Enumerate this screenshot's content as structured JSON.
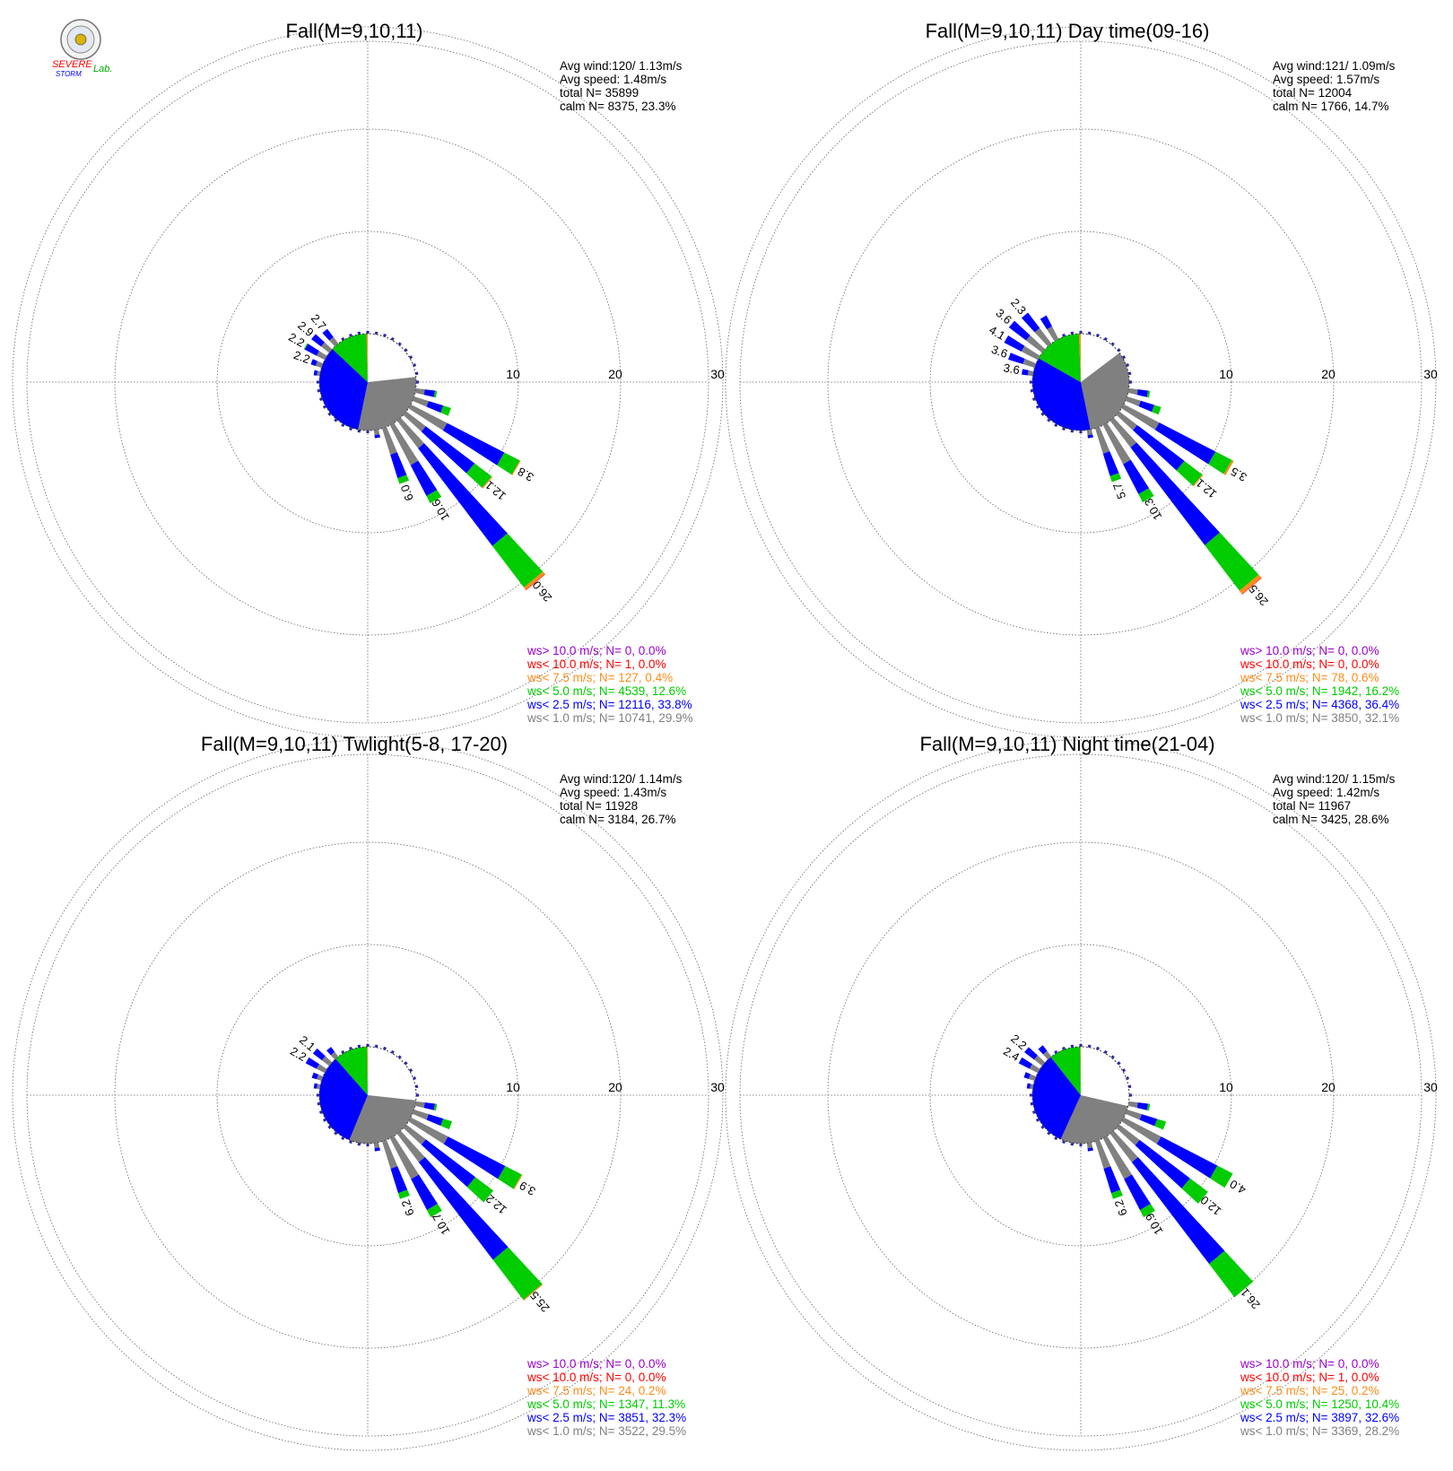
{
  "logo": {
    "line1": "SEVERE",
    "line2": "STORM",
    "line3": "Lab.",
    "colors": {
      "severe": "#ff0000",
      "storm": "#0000ff",
      "lab": "#00aa00"
    }
  },
  "colors": {
    "calm": "#ffffff",
    "lt1": "#808080",
    "lt2_5": "#0000ff",
    "lt5": "#00cc00",
    "lt7_5": "#ff8c1a",
    "lt10": "#ff0000",
    "gt10": "#9900cc",
    "grid": "#666666"
  },
  "chart_data": [
    {
      "type": "wind-rose",
      "title": "Fall(M=9,10,11)",
      "stats": [
        "Avg wind:120/ 1.13m/s",
        "Avg speed: 1.48m/s",
        "total N=      35899",
        "calm N=   8375,  23.3%"
      ],
      "rings": [
        10,
        20,
        30
      ],
      "ring_labels": [
        "10",
        "20",
        "30"
      ],
      "pie": [
        [
          "calm",
          23.3
        ],
        [
          "lt1",
          29.9
        ],
        [
          "lt2_5",
          33.8
        ],
        [
          "lt5",
          12.6
        ],
        [
          "lt7_5",
          0.4
        ]
      ],
      "bars": [
        {
          "dir": 100,
          "values": [
            0.9,
            1.0,
            0.2,
            0,
            0
          ]
        },
        {
          "dir": 110,
          "values": [
            1.5,
            1.5,
            0.8,
            0,
            0
          ]
        },
        {
          "dir": 120,
          "values": [
            4.0,
            6.3,
            1.7,
            0.1,
            0
          ]
        },
        {
          "dir": 130,
          "values": [
            2.4,
            6.0,
            2.1,
            0.1,
            0
          ]
        },
        {
          "dir": 140,
          "values": [
            3.4,
            12.0,
            5.1,
            0.3,
            0.05
          ]
        },
        {
          "dir": 150,
          "values": [
            4.4,
            3.4,
            0.8,
            0,
            0
          ]
        },
        {
          "dir": 160,
          "values": [
            2.7,
            2.4,
            0.6,
            0,
            0
          ]
        },
        {
          "dir": 170,
          "values": [
            0.5,
            0.3,
            0,
            0,
            0
          ]
        },
        {
          "dir": 280,
          "values": [
            0.3,
            0.3,
            0,
            0,
            0
          ]
        },
        {
          "dir": 290,
          "values": [
            0.6,
            0.5,
            0,
            0,
            0
          ]
        },
        {
          "dir": 300,
          "values": [
            0.9,
            1.3,
            0.1,
            0,
            0
          ]
        },
        {
          "dir": 310,
          "values": [
            1.0,
            1.2,
            0,
            0,
            0
          ]
        },
        {
          "dir": 320,
          "values": [
            0.8,
            1.0,
            0,
            0,
            0
          ]
        }
      ],
      "bar_labels": [
        {
          "dir": 120,
          "text": "3.8"
        },
        {
          "dir": 130,
          "text": "12.1"
        },
        {
          "dir": 140,
          "text": "26.0"
        },
        {
          "dir": 150,
          "text": "10.6"
        },
        {
          "dir": 160,
          "text": "6.0"
        },
        {
          "dir": 290,
          "text": "2.2"
        },
        {
          "dir": 300,
          "text": "2.2"
        },
        {
          "dir": 310,
          "text": "2.9"
        },
        {
          "dir": 320,
          "text": "2.7"
        }
      ],
      "legend": [
        {
          "key": "gt10",
          "text": "ws> 10.0 m/s; N=      0,  0.0%"
        },
        {
          "key": "lt10",
          "text": "ws< 10.0 m/s; N=      1,  0.0%"
        },
        {
          "key": "lt7_5",
          "text": "ws<  7.5 m/s; N=    127,  0.4%"
        },
        {
          "key": "lt5",
          "text": "ws<  5.0 m/s; N=  4539, 12.6%"
        },
        {
          "key": "lt2_5",
          "text": "ws<  2.5 m/s; N= 12116, 33.8%"
        },
        {
          "key": "lt1",
          "text": "ws<  1.0 m/s; N= 10741, 29.9%"
        }
      ]
    },
    {
      "type": "wind-rose",
      "title": "Fall(M=9,10,11) Day time(09-16)",
      "stats": [
        "Avg wind:121/ 1.09m/s",
        "Avg speed: 1.57m/s",
        "total N=      12004",
        "calm N=   1766,  14.7%"
      ],
      "rings": [
        10,
        20,
        30
      ],
      "ring_labels": [
        "10",
        "20",
        "30"
      ],
      "pie": [
        [
          "calm",
          14.7
        ],
        [
          "lt1",
          32.1
        ],
        [
          "lt2_5",
          36.4
        ],
        [
          "lt5",
          16.2
        ],
        [
          "lt7_5",
          0.6
        ]
      ],
      "bars": [
        {
          "dir": 100,
          "values": [
            0.9,
            1.0,
            0.2,
            0,
            0
          ]
        },
        {
          "dir": 110,
          "values": [
            1.4,
            1.4,
            0.7,
            0,
            0
          ]
        },
        {
          "dir": 120,
          "values": [
            3.9,
            6.2,
            1.8,
            0.2,
            0
          ]
        },
        {
          "dir": 130,
          "values": [
            2.2,
            5.8,
            2.2,
            0.1,
            0
          ]
        },
        {
          "dir": 140,
          "values": [
            3.3,
            12.0,
            5.6,
            0.4,
            0.05
          ]
        },
        {
          "dir": 150,
          "values": [
            4.3,
            3.3,
            0.9,
            0,
            0
          ]
        },
        {
          "dir": 160,
          "values": [
            2.6,
            2.3,
            0.6,
            0,
            0
          ]
        },
        {
          "dir": 170,
          "values": [
            0.5,
            0.3,
            0,
            0,
            0
          ]
        },
        {
          "dir": 280,
          "values": [
            0.5,
            0.6,
            0,
            0,
            0
          ]
        },
        {
          "dir": 290,
          "values": [
            1.2,
            1.5,
            0,
            0,
            0
          ]
        },
        {
          "dir": 300,
          "values": [
            1.8,
            1.9,
            0,
            0,
            0
          ]
        },
        {
          "dir": 310,
          "values": [
            2.0,
            2.1,
            0,
            0,
            0
          ]
        },
        {
          "dir": 320,
          "values": [
            1.9,
            1.9,
            0,
            0,
            0
          ]
        },
        {
          "dir": 330,
          "values": [
            1.4,
            1.2,
            0,
            0,
            0
          ]
        }
      ],
      "bar_labels": [
        {
          "dir": 120,
          "text": "3.5"
        },
        {
          "dir": 130,
          "text": "12.1"
        },
        {
          "dir": 140,
          "text": "26.5"
        },
        {
          "dir": 150,
          "text": "10.3"
        },
        {
          "dir": 160,
          "text": "5.7"
        },
        {
          "dir": 280,
          "text": "3.6"
        },
        {
          "dir": 290,
          "text": "3.6"
        },
        {
          "dir": 300,
          "text": "4.1"
        },
        {
          "dir": 310,
          "text": "3.6"
        },
        {
          "dir": 320,
          "text": "2.3"
        }
      ],
      "legend": [
        {
          "key": "gt10",
          "text": "ws> 10.0 m/s; N=      0,  0.0%"
        },
        {
          "key": "lt10",
          "text": "ws< 10.0 m/s; N=      0,  0.0%"
        },
        {
          "key": "lt7_5",
          "text": "ws<  7.5 m/s; N=     78,  0.6%"
        },
        {
          "key": "lt5",
          "text": "ws<  5.0 m/s; N=  1942, 16.2%"
        },
        {
          "key": "lt2_5",
          "text": "ws<  2.5 m/s; N=  4368, 36.4%"
        },
        {
          "key": "lt1",
          "text": "ws<  1.0 m/s; N=  3850, 32.1%"
        }
      ]
    },
    {
      "type": "wind-rose",
      "title": "Fall(M=9,10,11) Twlight(5-8, 17-20)",
      "stats": [
        "Avg wind:120/ 1.14m/s",
        "Avg speed: 1.43m/s",
        "total N=      11928",
        "calm N=   3184,  26.7%"
      ],
      "rings": [
        10,
        20,
        30
      ],
      "ring_labels": [
        "10",
        "20",
        "30"
      ],
      "pie": [
        [
          "calm",
          26.7
        ],
        [
          "lt1",
          29.5
        ],
        [
          "lt2_5",
          32.3
        ],
        [
          "lt5",
          11.3
        ],
        [
          "lt7_5",
          0.2
        ]
      ],
      "bars": [
        {
          "dir": 100,
          "values": [
            0.9,
            1.0,
            0.2,
            0,
            0
          ]
        },
        {
          "dir": 110,
          "values": [
            1.5,
            1.5,
            0.9,
            0,
            0
          ]
        },
        {
          "dir": 120,
          "values": [
            4.1,
            6.3,
            1.8,
            0.1,
            0
          ]
        },
        {
          "dir": 130,
          "values": [
            2.4,
            6.1,
            2.2,
            0,
            0
          ]
        },
        {
          "dir": 140,
          "values": [
            3.5,
            12.0,
            4.9,
            0.1,
            0
          ]
        },
        {
          "dir": 150,
          "values": [
            4.5,
            3.4,
            0.8,
            0,
            0
          ]
        },
        {
          "dir": 160,
          "values": [
            2.8,
            2.5,
            0.6,
            0,
            0
          ]
        },
        {
          "dir": 170,
          "values": [
            0.5,
            0.3,
            0,
            0,
            0
          ]
        },
        {
          "dir": 280,
          "values": [
            0.3,
            0.3,
            0,
            0,
            0
          ]
        },
        {
          "dir": 290,
          "values": [
            0.5,
            0.5,
            0,
            0,
            0
          ]
        },
        {
          "dir": 300,
          "values": [
            0.9,
            1.2,
            0,
            0,
            0
          ]
        },
        {
          "dir": 310,
          "values": [
            0.9,
            1.1,
            0,
            0,
            0
          ]
        },
        {
          "dir": 320,
          "values": [
            0.6,
            0.6,
            0,
            0,
            0
          ]
        }
      ],
      "bar_labels": [
        {
          "dir": 120,
          "text": "3.9"
        },
        {
          "dir": 130,
          "text": "12.2"
        },
        {
          "dir": 140,
          "text": "25.5"
        },
        {
          "dir": 150,
          "text": "10.7"
        },
        {
          "dir": 160,
          "text": "6.2"
        },
        {
          "dir": 300,
          "text": "2.2"
        },
        {
          "dir": 310,
          "text": "2.1"
        }
      ],
      "legend": [
        {
          "key": "gt10",
          "text": "ws> 10.0 m/s; N=      0,  0.0%"
        },
        {
          "key": "lt10",
          "text": "ws< 10.0 m/s; N=      0,  0.0%"
        },
        {
          "key": "lt7_5",
          "text": "ws<  7.5 m/s; N=     24,  0.2%"
        },
        {
          "key": "lt5",
          "text": "ws<  5.0 m/s; N=  1347, 11.3%"
        },
        {
          "key": "lt2_5",
          "text": "ws<  2.5 m/s; N=  3851, 32.3%"
        },
        {
          "key": "lt1",
          "text": "ws<  1.0 m/s; N=  3522, 29.5%"
        }
      ]
    },
    {
      "type": "wind-rose",
      "title": "Fall(M=9,10,11) Night time(21-04)",
      "stats": [
        "Avg wind:120/ 1.15m/s",
        "Avg speed: 1.42m/s",
        "total N=      11967",
        "calm N=   3425,  28.6%"
      ],
      "rings": [
        10,
        20,
        30
      ],
      "ring_labels": [
        "10",
        "20",
        "30"
      ],
      "pie": [
        [
          "calm",
          28.6
        ],
        [
          "lt1",
          28.2
        ],
        [
          "lt2_5",
          32.6
        ],
        [
          "lt5",
          10.4
        ],
        [
          "lt7_5",
          0.2
        ]
      ],
      "bars": [
        {
          "dir": 100,
          "values": [
            0.9,
            1.0,
            0.2,
            0,
            0
          ]
        },
        {
          "dir": 110,
          "values": [
            1.5,
            1.6,
            0.9,
            0,
            0
          ]
        },
        {
          "dir": 120,
          "values": [
            4.1,
            6.2,
            1.7,
            0,
            0
          ]
        },
        {
          "dir": 130,
          "values": [
            2.5,
            6.2,
            2.2,
            0,
            0
          ]
        },
        {
          "dir": 140,
          "values": [
            3.5,
            12.5,
            4.1,
            0,
            0
          ]
        },
        {
          "dir": 150,
          "values": [
            4.5,
            3.4,
            0.8,
            0,
            0
          ]
        },
        {
          "dir": 160,
          "values": [
            2.8,
            2.5,
            0.6,
            0,
            0
          ]
        },
        {
          "dir": 170,
          "values": [
            0.5,
            0.3,
            0,
            0,
            0
          ]
        },
        {
          "dir": 280,
          "values": [
            0.3,
            0.3,
            0,
            0,
            0
          ]
        },
        {
          "dir": 290,
          "values": [
            0.6,
            0.5,
            0,
            0,
            0
          ]
        },
        {
          "dir": 300,
          "values": [
            0.9,
            1.2,
            0,
            0,
            0
          ]
        },
        {
          "dir": 310,
          "values": [
            1.0,
            1.2,
            0,
            0,
            0
          ]
        },
        {
          "dir": 320,
          "values": [
            0.7,
            0.7,
            0,
            0,
            0
          ]
        }
      ],
      "bar_labels": [
        {
          "dir": 120,
          "text": "4.0"
        },
        {
          "dir": 130,
          "text": "12.0"
        },
        {
          "dir": 140,
          "text": "26.1"
        },
        {
          "dir": 150,
          "text": "10.9"
        },
        {
          "dir": 160,
          "text": "6.2"
        },
        {
          "dir": 300,
          "text": "2.4"
        },
        {
          "dir": 310,
          "text": "2.2"
        }
      ],
      "legend": [
        {
          "key": "gt10",
          "text": "ws> 10.0 m/s; N=      0,  0.0%"
        },
        {
          "key": "lt10",
          "text": "ws< 10.0 m/s; N=      1,  0.0%"
        },
        {
          "key": "lt7_5",
          "text": "ws<  7.5 m/s; N=     25,  0.2%"
        },
        {
          "key": "lt5",
          "text": "ws<  5.0 m/s; N=  1250, 10.4%"
        },
        {
          "key": "lt2_5",
          "text": "ws<  2.5 m/s; N=  3897, 32.6%"
        },
        {
          "key": "lt1",
          "text": "ws<  1.0 m/s; N=  3369, 28.2%"
        }
      ]
    }
  ]
}
